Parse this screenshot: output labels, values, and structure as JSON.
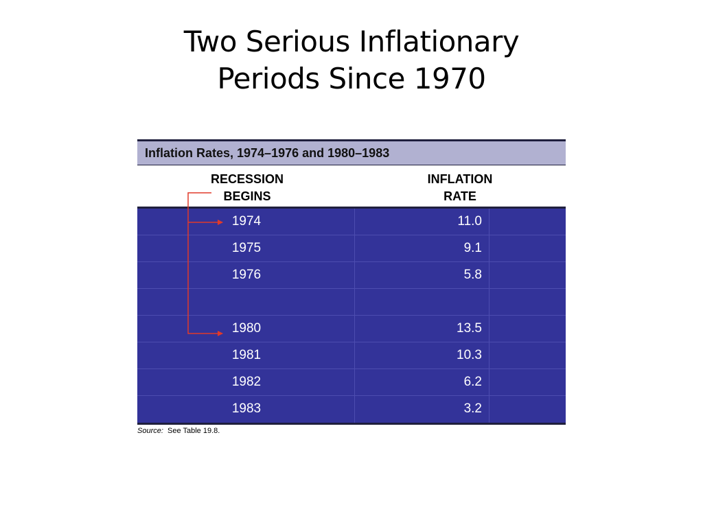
{
  "slide": {
    "title_line1": "Two Serious Inflationary",
    "title_line2": "Periods Since 1970"
  },
  "table": {
    "caption": "Inflation Rates, 1974–1976 and 1980–1983",
    "headers": {
      "recession_line1": "RECESSION",
      "recession_line2": "BEGINS",
      "inflation_line1": "INFLATION",
      "inflation_line2": "RATE"
    },
    "rows": [
      {
        "year": "1974",
        "rate": "11.0"
      },
      {
        "year": "1975",
        "rate": "9.1"
      },
      {
        "year": "1976",
        "rate": "5.8"
      },
      {
        "year": "",
        "rate": ""
      },
      {
        "year": "1980",
        "rate": "13.5"
      },
      {
        "year": "1981",
        "rate": "10.3"
      },
      {
        "year": "1982",
        "rate": "6.2"
      },
      {
        "year": "1983",
        "rate": "3.2"
      }
    ],
    "source_label": "Source:",
    "source_text": "See Table 19.8."
  },
  "colors": {
    "row_fill": "#333399",
    "caption_fill": "#b1b1d1",
    "arrow": "#e03a2a"
  }
}
